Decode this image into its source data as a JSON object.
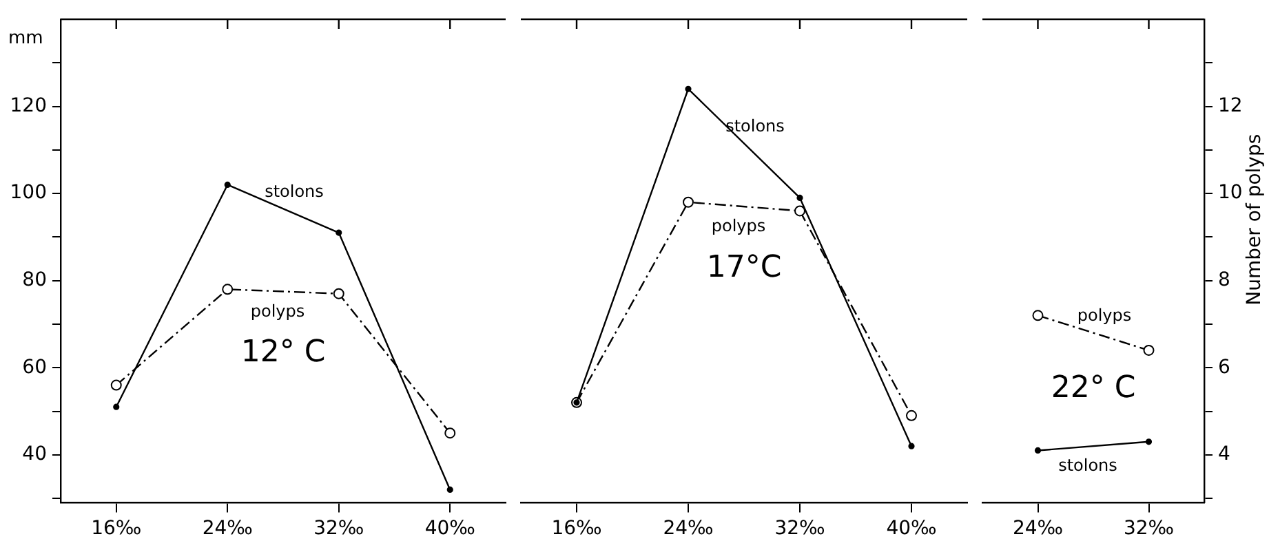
{
  "chart_data": [
    {
      "type": "line",
      "title": "12° C",
      "ylabel": "mm",
      "categories": [
        "16‰",
        "24‰",
        "32‰",
        "40‰"
      ],
      "series": [
        {
          "name": "stolons",
          "color": "#000000",
          "values": [
            51,
            102,
            91,
            32
          ],
          "marker": "circle",
          "line_style": "solid"
        },
        {
          "name": "polyps",
          "color": "#000000",
          "axis": "y2",
          "values": [
            5.6,
            7.8,
            7.7,
            4.5
          ],
          "marker": "circle",
          "line_style": "dashed"
        }
      ],
      "ylim": [
        29,
        140
      ],
      "yticks": [
        {
          "value": 30,
          "label": null
        },
        40,
        {
          "value": 50,
          "label": null
        },
        60,
        {
          "value": 70,
          "label": null
        },
        80,
        {
          "value": 90,
          "label": null
        },
        100,
        {
          "value": 110,
          "label": null
        },
        120,
        {
          "value": 130,
          "label": null
        }
      ],
      "y2lim": [
        2.9,
        14
      ],
      "tick_labels": "xy",
      "legend": false,
      "grid": false
    },
    {
      "type": "line",
      "title": "17°C",
      "categories": [
        "16‰",
        "24‰",
        "32‰",
        "40‰"
      ],
      "series": [
        {
          "name": "stolons",
          "color": "#000000",
          "values": [
            52,
            124,
            99,
            42
          ],
          "marker": "circle",
          "line_style": "solid"
        },
        {
          "name": "polyps",
          "color": "#000000",
          "axis": "y2",
          "values": [
            5.2,
            9.8,
            9.6,
            4.9
          ],
          "marker": "circle",
          "line_style": "dashed"
        }
      ],
      "ylim": [
        29,
        140
      ],
      "y2lim": [
        2.9,
        14
      ],
      "tick_labels": "x",
      "legend": false,
      "grid": false
    },
    {
      "type": "line",
      "title": "22° C",
      "y2label": "Number of polyps",
      "categories": [
        "24‰",
        "32‰"
      ],
      "series": [
        {
          "name": "polyps",
          "color": "#000000",
          "axis": "y2",
          "values": [
            7.2,
            6.4
          ],
          "marker": "circle",
          "line_style": "dashed"
        },
        {
          "name": "stolons",
          "color": "#000000",
          "values": [
            41,
            43
          ],
          "marker": "circle",
          "line_style": "solid"
        }
      ],
      "ylim": [
        29,
        140
      ],
      "y2lim": [
        2.9,
        14
      ],
      "y2ticks": [
        {
          "value": 3,
          "label": null
        },
        4,
        {
          "value": 5,
          "label": null
        },
        6,
        {
          "value": 7,
          "label": null
        },
        8,
        {
          "value": 9,
          "label": null
        },
        10,
        {
          "value": 11,
          "label": null
        },
        12,
        {
          "value": 13,
          "label": null
        }
      ],
      "tick_labels": "xy2",
      "legend": false,
      "grid": false
    }
  ]
}
